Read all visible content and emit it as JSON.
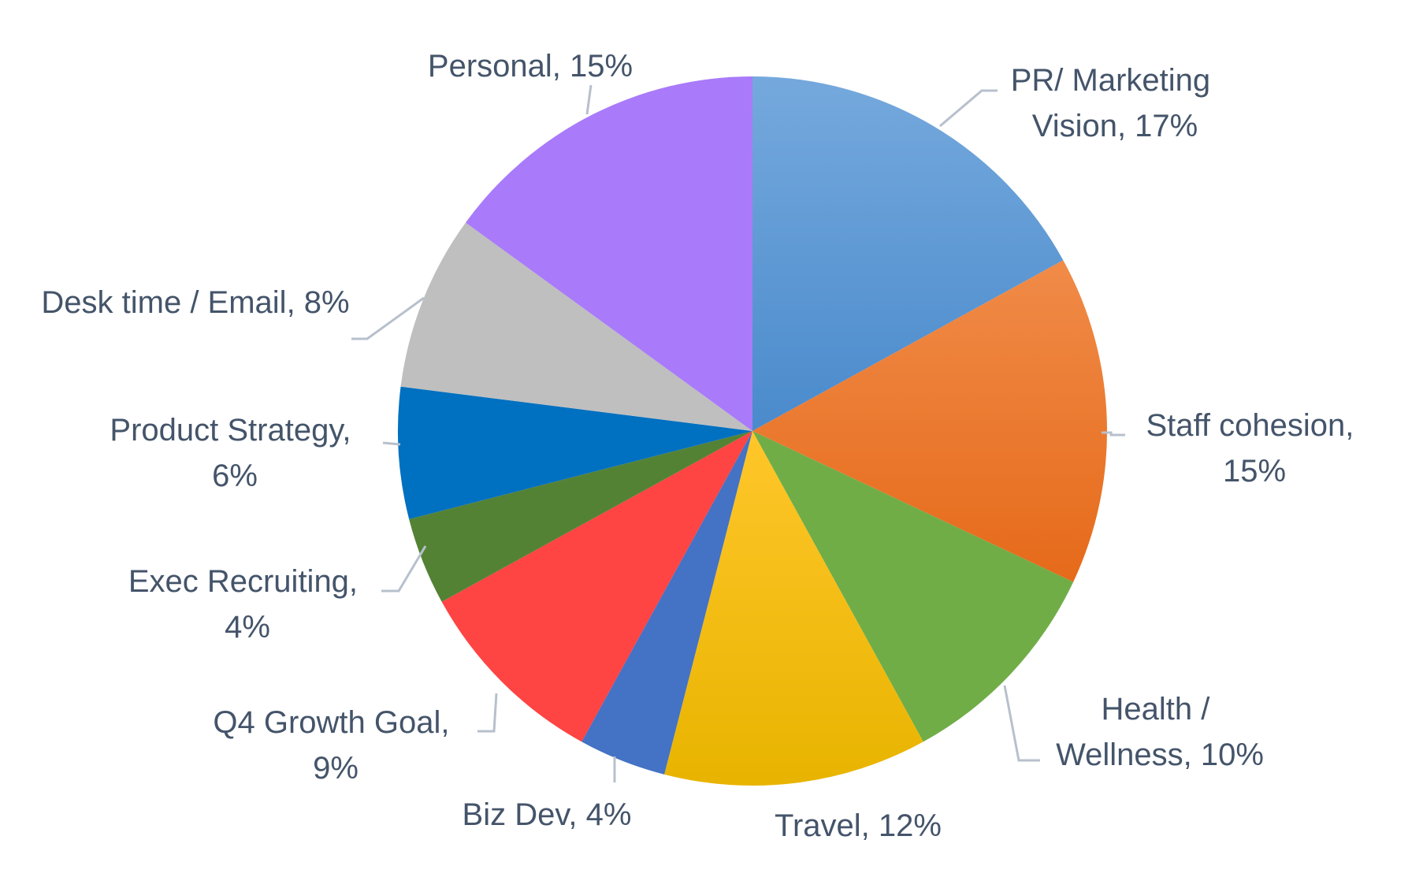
{
  "chart_data": {
    "type": "pie",
    "title": "",
    "start_angle_deg": 0,
    "direction": "clockwise",
    "slices": [
      {
        "name": "PR/ Marketing Vision",
        "value": 17,
        "label_lines": [
          "PR/ Marketing",
          "Vision, 17%"
        ],
        "color": "#5b9bd5"
      },
      {
        "name": "Staff cohesion",
        "value": 15,
        "label_lines": [
          "Staff cohesion,",
          "15%"
        ],
        "color": "#ed7d31"
      },
      {
        "name": "Health / Wellness",
        "value": 10,
        "label_lines": [
          "Health /",
          "Wellness, 10%"
        ],
        "color": "#70ad47"
      },
      {
        "name": "Travel",
        "value": 12,
        "label_lines": [
          "Travel, 12%"
        ],
        "color": "#ffc000"
      },
      {
        "name": "Biz Dev",
        "value": 4,
        "label_lines": [
          "Biz Dev, 4%"
        ],
        "color": "#4472c4"
      },
      {
        "name": "Q4 Growth Goal",
        "value": 9,
        "label_lines": [
          "Q4 Growth Goal,",
          "9%"
        ],
        "color": "#ff4444"
      },
      {
        "name": "Exec Recruiting",
        "value": 4,
        "label_lines": [
          "Exec Recruiting,",
          "4%"
        ],
        "color": "#548235"
      },
      {
        "name": "Product Strategy",
        "value": 6,
        "label_lines": [
          "Product Strategy,",
          "6%"
        ],
        "color": "#0070c0"
      },
      {
        "name": "Desk time / Email",
        "value": 8,
        "label_lines": [
          "Desk time / Email, 8%"
        ],
        "color": "#bfbfbf"
      },
      {
        "name": "Personal",
        "value": 15,
        "label_lines": [
          "Personal, 15%"
        ],
        "color": "#a97afa"
      }
    ]
  }
}
